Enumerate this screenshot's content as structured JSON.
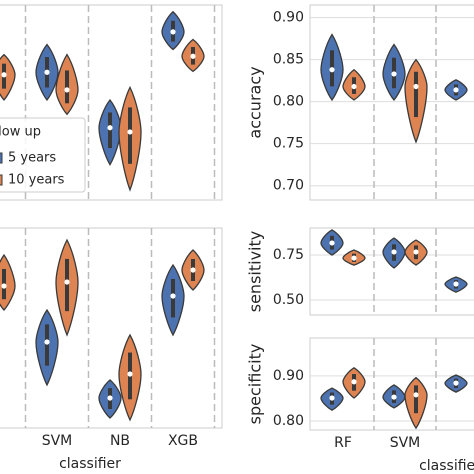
{
  "chart_data": [
    {
      "type": "violin",
      "ylim": [
        0.683,
        0.915
      ],
      "series": [
        {
          "name": "5 years",
          "color": "#4c72b0",
          "values": [
            0.84,
            0.835,
            0.769,
            0.883
          ],
          "low": [
            0.8,
            0.802,
            0.725,
            0.862
          ],
          "high": [
            0.88,
            0.868,
            0.802,
            0.907
          ]
        },
        {
          "name": "10 years",
          "color": "#dd8452",
          "values": [
            0.832,
            0.814,
            0.764,
            0.854
          ],
          "low": [
            0.802,
            0.785,
            0.695,
            0.836
          ],
          "high": [
            0.856,
            0.856,
            0.817,
            0.874
          ]
        }
      ],
      "legend": {
        "title": "follow up",
        "position": "lower left"
      }
    },
    {
      "type": "violin",
      "ylim": [
        0,
        1
      ],
      "xlabel": "classifier",
      "categories": [
        null,
        "SVM",
        "NB",
        "XGB"
      ],
      "series": [
        {
          "color": "#4c72b0",
          "values": [
            0.6,
            0.43,
            0.15,
            0.66
          ],
          "low": [
            0.5,
            0.215,
            0.05,
            0.465
          ],
          "high": [
            0.7,
            0.59,
            0.24,
            0.815
          ]
        },
        {
          "color": "#dd8452",
          "values": [
            0.71,
            0.73,
            0.27,
            0.79
          ],
          "low": [
            0.59,
            0.465,
            0.04,
            0.69
          ],
          "high": [
            0.865,
            0.94,
            0.465,
            0.89
          ]
        }
      ]
    },
    {
      "type": "violin",
      "ylabel": "accuracy",
      "ylim": [
        0.683,
        0.915
      ],
      "yticks": [
        {
          "value": 0.7,
          "label": "0.70"
        },
        {
          "value": 0.75,
          "label": "0.75"
        },
        {
          "value": 0.8,
          "label": "0.80"
        },
        {
          "value": 0.85,
          "label": "0.85"
        },
        {
          "value": 0.9,
          "label": "0.90"
        }
      ],
      "series": [
        {
          "color": "#4c72b0",
          "values": [
            0.838,
            0.833,
            0.814
          ],
          "low": [
            0.802,
            0.802,
            0.802
          ],
          "high": [
            0.88,
            0.868,
            0.826
          ]
        },
        {
          "color": "#dd8452",
          "values": [
            0.818,
            0.818,
            null
          ],
          "low": [
            0.802,
            0.752,
            null
          ],
          "high": [
            0.838,
            0.85,
            null
          ]
        }
      ]
    },
    {
      "type": "violin",
      "ylabel": "sensitivity",
      "ylim": [
        0.417,
        0.9
      ],
      "yticks": [
        {
          "value": 0.5,
          "label": "0.50"
        },
        0.75
      ],
      "series": [
        {
          "color": "#4c72b0",
          "values": [
            0.817,
            0.767,
            0.589
          ],
          "low": [
            0.75,
            0.678,
            0.544
          ],
          "high": [
            0.889,
            0.844,
            0.628
          ]
        },
        {
          "color": "#dd8452",
          "values": [
            0.733,
            0.767,
            null
          ],
          "low": [
            0.694,
            0.694,
            null
          ],
          "high": [
            0.778,
            0.833,
            null
          ]
        }
      ]
    },
    {
      "type": "violin",
      "ylabel": "specificity",
      "xlabel": "classifier",
      "ylim": [
        0.78,
        0.984
      ],
      "yticks": [
        {
          "value": 0.8,
          "label": "0.80"
        },
        {
          "value": 0.9,
          "label": "0.90"
        }
      ],
      "categories": [
        "RF",
        "SVM",
        null
      ],
      "series": [
        {
          "color": "#4c72b0",
          "values": [
            0.851,
            0.853,
            0.884
          ],
          "low": [
            0.824,
            0.829,
            0.864
          ],
          "high": [
            0.873,
            0.88,
            0.902
          ]
        },
        {
          "color": "#dd8452",
          "values": [
            0.887,
            0.858,
            null
          ],
          "low": [
            0.851,
            0.784,
            null
          ],
          "high": [
            0.918,
            0.896,
            null
          ]
        }
      ]
    }
  ]
}
